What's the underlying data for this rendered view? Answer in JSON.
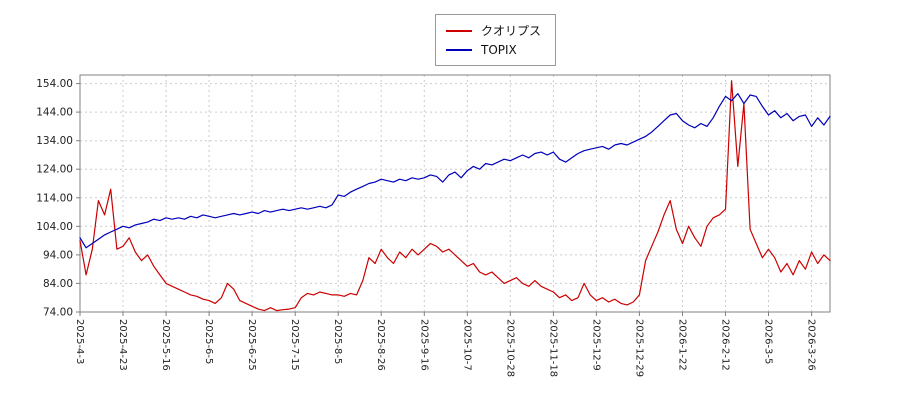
{
  "page": {
    "background": "#ffffff"
  },
  "chart_data": {
    "type": "line",
    "title": "",
    "xlabel": "",
    "ylabel": "",
    "legend_position": "top-center",
    "grid": "on",
    "grid_color": "#cccccc",
    "axis_color": "#808080",
    "tick_text_color": "#222222",
    "ylim": [
      74,
      157
    ],
    "y_ticks": [
      74,
      84,
      94,
      104,
      114,
      124,
      134,
      144,
      154
    ],
    "y_tick_labels": [
      "74.00",
      "84.00",
      "94.00",
      "104.00",
      "114.00",
      "124.00",
      "134.00",
      "144.00",
      "154.00"
    ],
    "x_tick_labels": [
      "2025-4-3",
      "2025-4-23",
      "2025-5-16",
      "2025-6-5",
      "2025-6-25",
      "2025-7-15",
      "2025-8-5",
      "2025-8-26",
      "2025-9-16",
      "2025-10-7",
      "2025-10-28",
      "2025-11-18",
      "2025-12-9",
      "2025-12-29",
      "2026-1-22",
      "2026-2-12",
      "2026-3-5",
      "2026-3-26"
    ],
    "x_tick_days": [
      0,
      14,
      28,
      42,
      56,
      70,
      84,
      98,
      112,
      126,
      140,
      154,
      168,
      182,
      196,
      210,
      224,
      238
    ],
    "total_days": 244,
    "sample_step_days": 2,
    "series": [
      {
        "name": "クオリプス",
        "color": "#cc0000",
        "values": [
          99,
          87,
          96,
          113,
          108,
          117,
          96,
          97,
          100,
          95,
          92,
          94,
          90,
          87,
          84,
          83,
          82,
          81,
          80,
          79.5,
          78.5,
          78,
          77,
          79,
          84,
          82,
          78,
          77,
          76,
          75,
          74.5,
          75.5,
          74.5,
          74.8,
          75,
          75.5,
          79,
          80.5,
          80,
          81,
          80.5,
          80,
          80,
          79.5,
          80.5,
          80,
          85,
          93,
          91,
          96,
          93,
          91,
          95,
          93,
          96,
          94,
          96,
          98,
          97,
          95,
          96,
          94,
          92,
          90,
          91,
          88,
          87,
          88,
          86,
          84,
          85,
          86,
          84,
          83,
          85,
          83,
          82,
          81,
          79,
          80,
          78,
          79,
          84,
          80,
          78,
          79,
          77.5,
          78.5,
          77,
          76.5,
          77.5,
          80,
          92,
          97,
          102,
          108,
          113,
          103,
          98,
          104,
          100,
          97,
          104,
          107,
          108,
          110,
          155,
          125,
          147,
          103,
          98,
          93,
          96,
          93,
          88,
          91,
          87,
          92,
          89,
          95,
          91,
          94,
          92
        ]
      },
      {
        "name": "TOPIX",
        "color": "#0000bb",
        "values": [
          100,
          96.5,
          98,
          99.5,
          101,
          102,
          103,
          104,
          103.5,
          104.5,
          105,
          105.5,
          106.5,
          106,
          107,
          106.5,
          107,
          106.5,
          107.5,
          107,
          108,
          107.5,
          107,
          107.5,
          108,
          108.5,
          108,
          108.5,
          109,
          108.5,
          109.5,
          109,
          109.5,
          110,
          109.5,
          110,
          110.5,
          110,
          110.5,
          111,
          110.5,
          111.5,
          115,
          114.5,
          116,
          117,
          118,
          119,
          119.5,
          120.5,
          120,
          119.5,
          120.5,
          120,
          121,
          120.5,
          121,
          122,
          121.5,
          119.5,
          122,
          123,
          121,
          123.5,
          125,
          124,
          126,
          125.5,
          126.5,
          127.5,
          127,
          128,
          129,
          128,
          129.5,
          130,
          129,
          130,
          127.5,
          126.5,
          128,
          129.5,
          130.5,
          131,
          131.5,
          132,
          131,
          132.5,
          133,
          132.5,
          133.5,
          134.5,
          135.5,
          137,
          139,
          141,
          143,
          143.5,
          141,
          139.5,
          138.5,
          140,
          139,
          142,
          146,
          149.5,
          148,
          150.5,
          147,
          150,
          149.5,
          146,
          143,
          144.5,
          142,
          143.5,
          141,
          142.5,
          143,
          139,
          142,
          139.5,
          142.5
        ]
      }
    ]
  },
  "legend": {
    "items": [
      {
        "label": "クオリプス",
        "color": "#cc0000"
      },
      {
        "label": "TOPIX",
        "color": "#0000bb"
      }
    ]
  }
}
